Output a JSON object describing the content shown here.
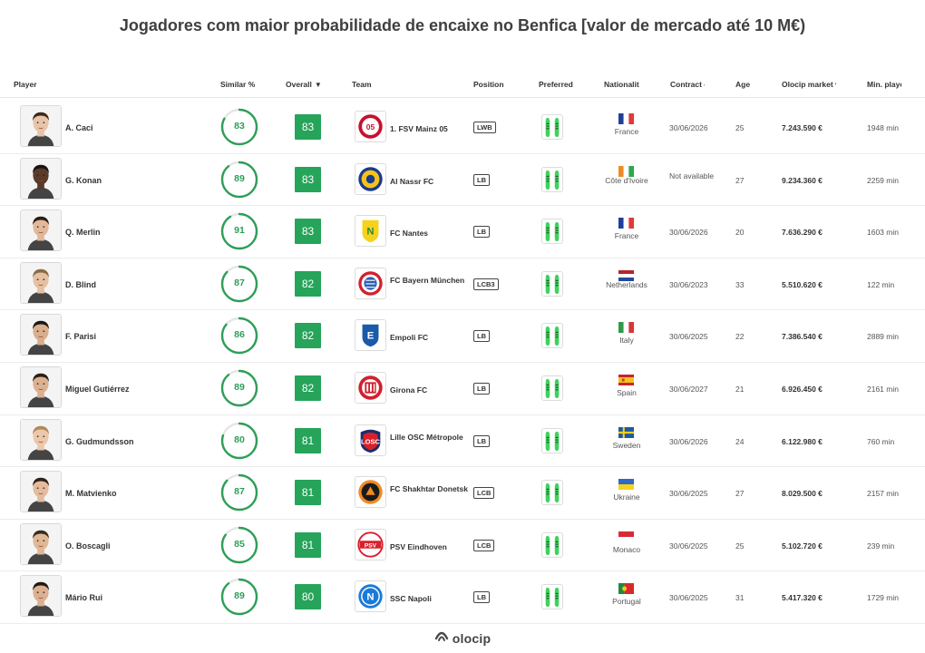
{
  "title": "Jogadores com maior probabilidade de encaixe no Benfica [valor de mercado até 10 M€)",
  "headers": {
    "player": "Player",
    "similar": "Similar %",
    "overall": "Overall",
    "sort_indicator": "▼",
    "team": "Team",
    "position": "Position",
    "preferred": "Preferred",
    "nationality": "Nationalit",
    "contract": "Contract e",
    "age": "Age",
    "market_value": "Olocip market v",
    "min_played": "Min. playe"
  },
  "players": [
    {
      "name": "A. Caci",
      "similar": 83,
      "overall": 83,
      "team": "1. FSV Mainz 05",
      "team_badge": "mainz-icon",
      "position": "LWB",
      "nationality": "France",
      "flag": "france",
      "contract": "30/06/2026",
      "age": "25",
      "value": "7.243.590 €",
      "minutes": "1948 min",
      "skin": "#e8c4a8",
      "hair": "#3b2a1e"
    },
    {
      "name": "G. Konan",
      "similar": 89,
      "overall": 83,
      "team": "Al Nassr FC",
      "team_badge": "alnassr-icon",
      "position": "LB",
      "nationality": "Côte d'Ivoire",
      "flag": "ivorycoast",
      "contract": "Not available",
      "age": "27",
      "value": "9.234.360 €",
      "minutes": "2259 min",
      "skin": "#5a3a28",
      "hair": "#1a1210"
    },
    {
      "name": "Q. Merlin",
      "similar": 91,
      "overall": 83,
      "team": "FC Nantes",
      "team_badge": "nantes-icon",
      "position": "LB",
      "nationality": "France",
      "flag": "france",
      "contract": "30/06/2026",
      "age": "20",
      "value": "7.636.290 €",
      "minutes": "1603 min",
      "skin": "#e2b89a",
      "hair": "#2a1d14"
    },
    {
      "name": "D. Blind",
      "similar": 87,
      "overall": 82,
      "team": "FC Bayern München",
      "team_badge": "bayern-icon",
      "position": "LCB3",
      "nationality": "Netherlands",
      "flag": "netherlands",
      "contract": "30/06/2023",
      "age": "33",
      "value": "5.510.620 €",
      "minutes": "122 min",
      "skin": "#e6c0a2",
      "hair": "#8a6a45"
    },
    {
      "name": "F. Parisi",
      "similar": 86,
      "overall": 82,
      "team": "Empoli FC",
      "team_badge": "empoli-icon",
      "position": "LB",
      "nationality": "Italy",
      "flag": "italy",
      "contract": "30/06/2025",
      "age": "22",
      "value": "7.386.540 €",
      "minutes": "2889 min",
      "skin": "#d9ae8c",
      "hair": "#1e1611"
    },
    {
      "name": "Miguel Gutiérrez",
      "similar": 89,
      "overall": 82,
      "team": "Girona FC",
      "team_badge": "girona-icon",
      "position": "LB",
      "nationality": "Spain",
      "flag": "spain",
      "contract": "30/06/2027",
      "age": "21",
      "value": "6.926.450 €",
      "minutes": "2161 min",
      "skin": "#dcb190",
      "hair": "#2b1f16"
    },
    {
      "name": "G. Gudmundsson",
      "similar": 80,
      "overall": 81,
      "team": "Lille OSC Métropole",
      "team_badge": "lille-icon",
      "position": "LB",
      "nationality": "Sweden",
      "flag": "sweden",
      "contract": "30/06/2026",
      "age": "24",
      "value": "6.122.980 €",
      "minutes": "760 min",
      "skin": "#ecc8aa",
      "hair": "#b08a5a"
    },
    {
      "name": "M. Matvienko",
      "similar": 87,
      "overall": 81,
      "team": "FC Shakhtar Donetsk",
      "team_badge": "shakhtar-icon",
      "position": "LCB",
      "nationality": "Ukraine",
      "flag": "ukraine",
      "contract": "30/06/2025",
      "age": "27",
      "value": "8.029.500 €",
      "minutes": "2157 min",
      "skin": "#e4bc9c",
      "hair": "#2e221a"
    },
    {
      "name": "O. Boscagli",
      "similar": 85,
      "overall": 81,
      "team": "PSV Eindhoven",
      "team_badge": "psv-icon",
      "position": "LCB",
      "nationality": "Monaco",
      "flag": "monaco",
      "contract": "30/06/2025",
      "age": "25",
      "value": "5.102.720 €",
      "minutes": "239 min",
      "skin": "#e0b896",
      "hair": "#3a2b20"
    },
    {
      "name": "Mário Rui",
      "similar": 89,
      "overall": 80,
      "team": "SSC Napoli",
      "team_badge": "napoli-icon",
      "position": "LB",
      "nationality": "Portugal",
      "flag": "portugal",
      "contract": "30/06/2025",
      "age": "31",
      "value": "5.417.320 €",
      "minutes": "1729 min",
      "skin": "#dcb090",
      "hair": "#221913"
    }
  ],
  "colors": {
    "accent_green": "#25a45a",
    "ring_green": "#2e9e57",
    "ring_track": "#e6e6e6"
  },
  "footer": {
    "brand": "olocip"
  }
}
